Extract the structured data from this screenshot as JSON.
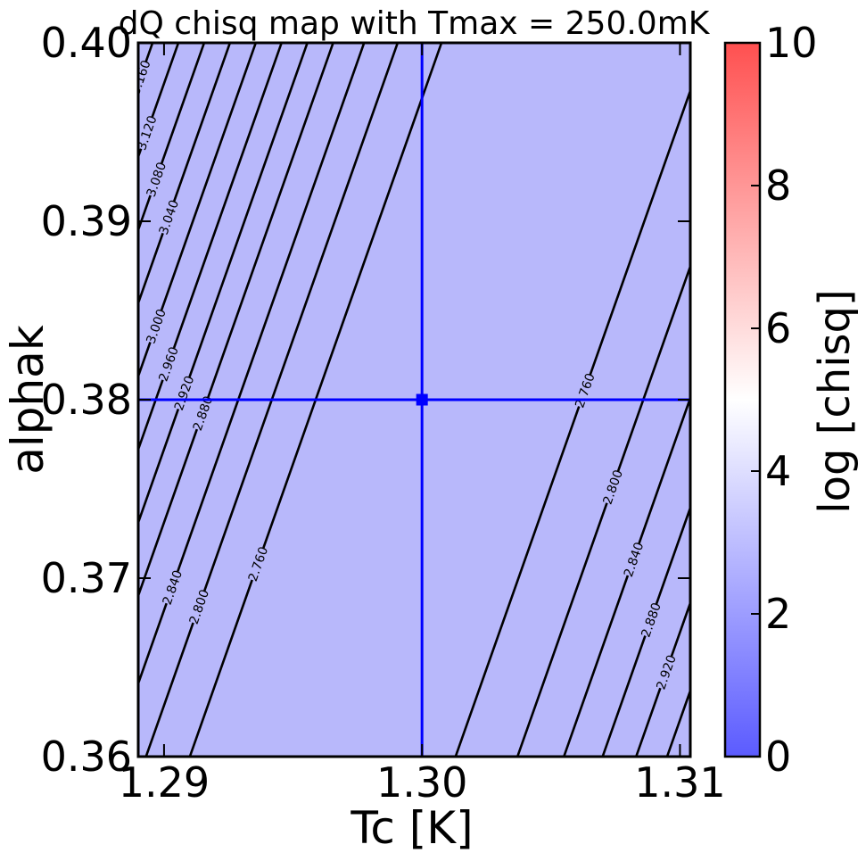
{
  "chart_data": {
    "type": "contour",
    "title": "dQ chisq map with Tmax = 250.0mK",
    "xlabel": "Tc [K]",
    "ylabel": "alphak",
    "xlim": [
      1.289,
      1.3104
    ],
    "ylim": [
      0.36,
      0.4
    ],
    "xticks": [
      1.29,
      1.3,
      1.31
    ],
    "xtick_labels": [
      "1.29",
      "1.30",
      "1.31"
    ],
    "yticks": [
      0.36,
      0.37,
      0.38,
      0.39,
      0.4
    ],
    "ytick_labels": [
      "0.36",
      "0.37",
      "0.38",
      "0.39",
      "0.40"
    ],
    "colorbar": {
      "label": "log [chisq]",
      "range": [
        0,
        10
      ],
      "ticks": [
        0,
        2,
        4,
        6,
        8,
        10
      ],
      "tick_labels": [
        "0",
        "2",
        "4",
        "6",
        "8",
        "10"
      ],
      "colormap": "bwr",
      "colors": {
        "low": "#5b5bff",
        "mid": "#ffffff",
        "high": "#ff5050"
      }
    },
    "background_color": "#b8b8fb",
    "line_color": "#000000",
    "marker": {
      "x": 1.3,
      "y": 0.38,
      "color": "#0000ff"
    },
    "crosshair": {
      "x": 1.3,
      "y": 0.38,
      "color": "#0000ff"
    },
    "contour_slope_dy_dx": 4.1,
    "contour_lines": [
      {
        "level": "3.160",
        "x_at_ymin": 1.2798,
        "labeled": true
      },
      {
        "level": "3.120",
        "x_at_ymin": 1.2808,
        "labeled": true
      },
      {
        "level": "3.080",
        "x_at_ymin": 1.2818,
        "labeled": true
      },
      {
        "level": "3.040",
        "x_at_ymin": 1.2828,
        "labeled": true
      },
      {
        "level": "3.000",
        "x_at_ymin": 1.2838,
        "labeled": true
      },
      {
        "level": "2.960",
        "x_at_ymin": 1.2848,
        "labeled": true
      },
      {
        "level": "2.920",
        "x_at_ymin": 1.2858,
        "labeled": true
      },
      {
        "level": "2.880",
        "x_at_ymin": 1.2868,
        "labeled": true
      },
      {
        "level": "2.840",
        "x_at_ymin": 1.288,
        "labeled": true
      },
      {
        "level": "2.800",
        "x_at_ymin": 1.2893,
        "labeled": true
      },
      {
        "level": "2.760",
        "x_at_ymin": 1.291,
        "labeled": true
      },
      {
        "level": "2.760",
        "x_at_ymin": 1.3013,
        "labeled": true
      },
      {
        "level": "2.800",
        "x_at_ymin": 1.3037,
        "labeled": true
      },
      {
        "level": "2.840",
        "x_at_ymin": 1.3055,
        "labeled": true
      },
      {
        "level": "2.880",
        "x_at_ymin": 1.307,
        "labeled": true
      },
      {
        "level": "2.920",
        "x_at_ymin": 1.3083,
        "labeled": true
      },
      {
        "level": "2.960",
        "x_at_ymin": 1.3095,
        "labeled": false
      }
    ]
  }
}
